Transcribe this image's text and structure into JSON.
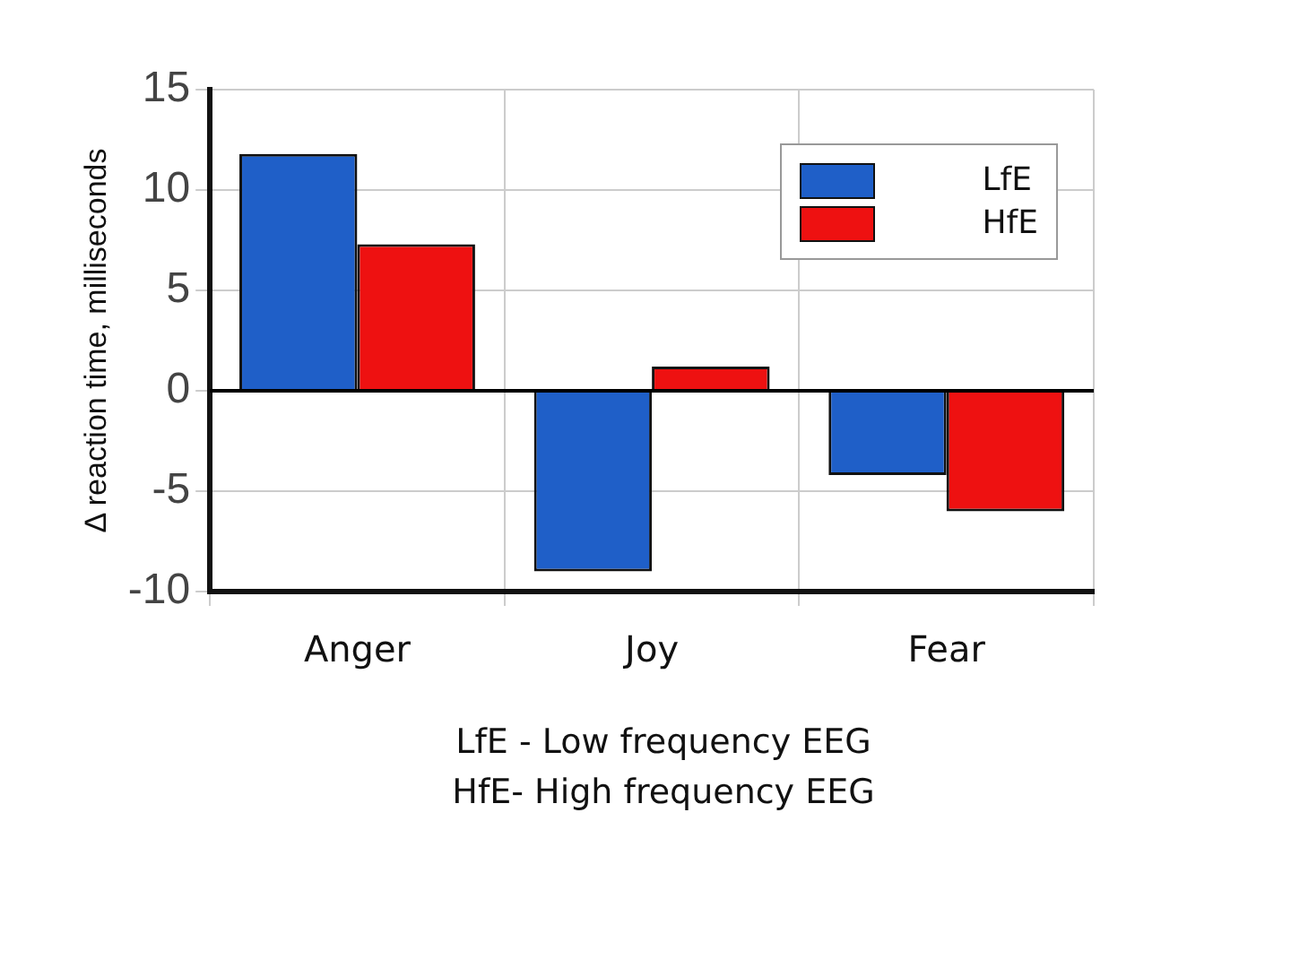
{
  "chart_data": {
    "type": "bar",
    "ylabel": "Δ reaction time, milliseconds",
    "categories": [
      "Anger",
      "Joy",
      "Fear"
    ],
    "series": [
      {
        "name": "LfE",
        "color": "#1f5fc8",
        "values": [
          11.8,
          -9.0,
          -4.2
        ]
      },
      {
        "name": "HfE",
        "color": "#ee1111",
        "values": [
          7.3,
          1.2,
          -6.0
        ]
      }
    ],
    "ylim": [
      -10,
      15
    ],
    "yticks": [
      -10,
      -5,
      0,
      5,
      10,
      15
    ],
    "grid": true,
    "legend": "top right",
    "annotations": [
      "LfE - Low frequency EEG",
      "HfE- High frequency EEG"
    ]
  }
}
